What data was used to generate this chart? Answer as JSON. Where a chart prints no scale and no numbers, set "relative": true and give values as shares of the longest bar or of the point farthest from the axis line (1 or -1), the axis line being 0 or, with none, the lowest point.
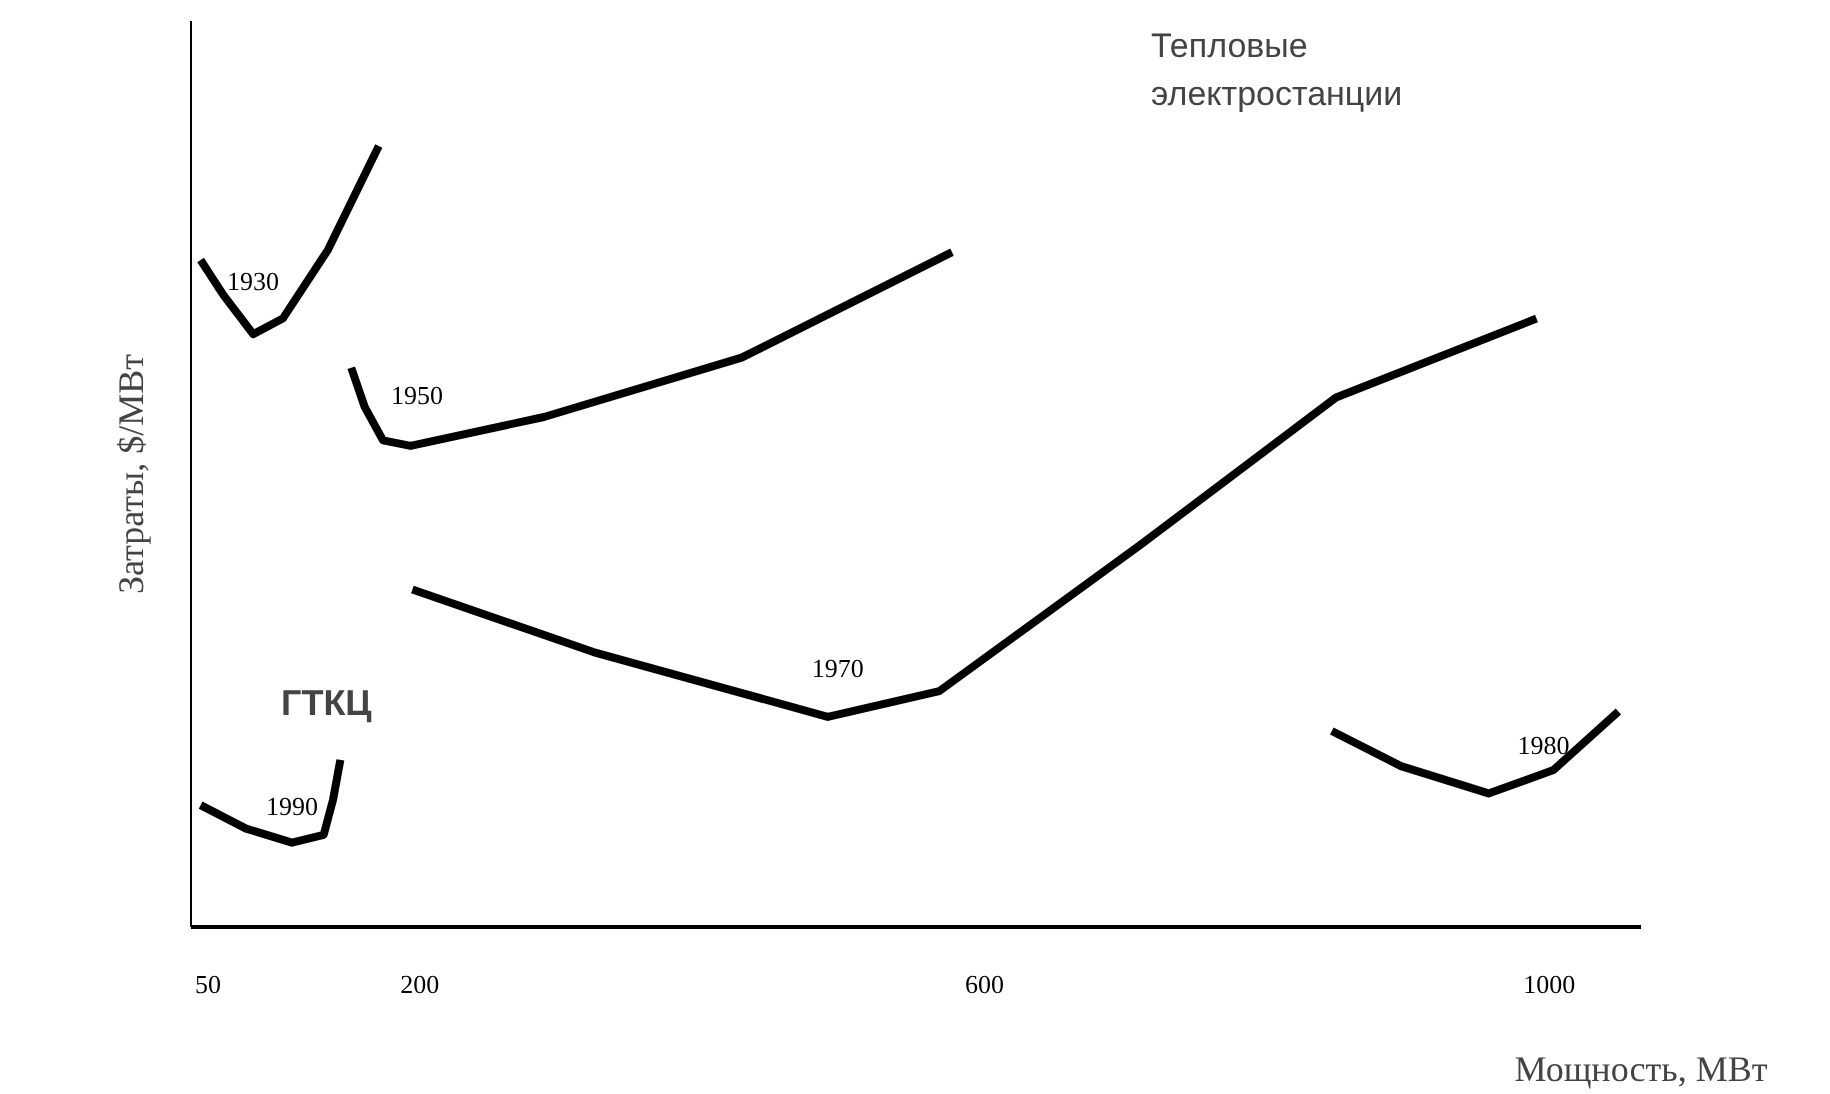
{
  "chart_data": {
    "type": "line",
    "relative": true,
    "xlabel": "Мощность, МВт",
    "ylabel": "Затраты, $/МВт",
    "annotations": [
      "Тепловые\nэлектростанции",
      "ГТКЦ"
    ],
    "xlim": [
      38,
      1065
    ],
    "xticks": [
      50,
      200,
      600,
      1000
    ],
    "grid": false,
    "legend": false,
    "marker": "none",
    "line_style": "solid",
    "series": [
      {
        "name": "1930",
        "color": "#000000",
        "x": [
          44.8,
          61,
          82,
          103,
          135,
          171
        ],
        "values": [
          0.854,
          0.809,
          0.759,
          0.779,
          0.867,
          1
        ]
      },
      {
        "name": "1950",
        "color": "#000000",
        "x": [
          151.5,
          161,
          174,
          193.5,
          288,
          428,
          577
        ],
        "values": [
          0.716,
          0.666,
          0.623,
          0.616,
          0.653,
          0.729,
          0.864
        ]
      },
      {
        "name": "1970",
        "color": "#000000",
        "x": [
          194.8,
          323,
          489,
          568,
          711,
          849,
          991
        ],
        "values": [
          0.432,
          0.352,
          0.269,
          0.302,
          0.49,
          0.678,
          0.779
        ]
      },
      {
        "name": "1980",
        "color": "#000000",
        "x": [
          846,
          895,
          957,
          1003,
          1049
        ],
        "values": [
          0.251,
          0.206,
          0.171,
          0.201,
          0.276
        ]
      },
      {
        "name": "1990",
        "color": "#000000",
        "x": [
          44.8,
          77,
          109.5,
          132,
          138.6,
          143.8
        ],
        "values": [
          0.156,
          0.126,
          0.108,
          0.118,
          0.163,
          0.214
        ]
      }
    ]
  }
}
